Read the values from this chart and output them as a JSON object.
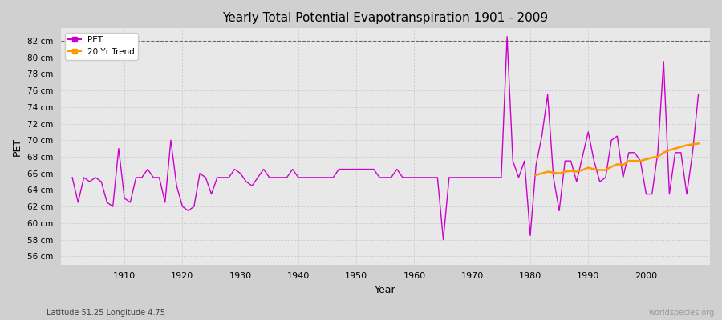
{
  "title": "Yearly Total Potential Evapotranspiration 1901 - 2009",
  "xlabel": "Year",
  "ylabel": "PET",
  "subtitle": "Latitude 51.25 Longitude 4.75",
  "watermark": "worldspecies.org",
  "pet_color": "#cc00cc",
  "trend_color": "#ff9900",
  "fig_bg": "#d0d0d0",
  "ax_bg": "#e8e8e8",
  "years": [
    1901,
    1902,
    1903,
    1904,
    1905,
    1906,
    1907,
    1908,
    1909,
    1910,
    1911,
    1912,
    1913,
    1914,
    1915,
    1916,
    1917,
    1918,
    1919,
    1920,
    1921,
    1922,
    1923,
    1924,
    1925,
    1926,
    1927,
    1928,
    1929,
    1930,
    1931,
    1932,
    1933,
    1934,
    1935,
    1936,
    1937,
    1938,
    1939,
    1940,
    1941,
    1942,
    1943,
    1944,
    1945,
    1946,
    1947,
    1948,
    1949,
    1950,
    1951,
    1952,
    1953,
    1954,
    1955,
    1956,
    1957,
    1958,
    1959,
    1960,
    1961,
    1962,
    1963,
    1964,
    1965,
    1966,
    1967,
    1968,
    1969,
    1970,
    1971,
    1972,
    1973,
    1974,
    1975,
    1976,
    1977,
    1978,
    1979,
    1980,
    1981,
    1982,
    1983,
    1984,
    1985,
    1986,
    1987,
    1988,
    1989,
    1990,
    1991,
    1992,
    1993,
    1994,
    1995,
    1996,
    1997,
    1998,
    1999,
    2000,
    2001,
    2002,
    2003,
    2004,
    2005,
    2006,
    2007,
    2008,
    2009
  ],
  "pet_values": [
    65.5,
    62.5,
    65.5,
    65.0,
    65.5,
    65.0,
    62.5,
    62.0,
    69.0,
    63.0,
    62.5,
    65.5,
    65.5,
    66.5,
    65.5,
    65.5,
    62.5,
    70.0,
    64.5,
    62.0,
    61.5,
    62.0,
    66.0,
    65.5,
    63.5,
    65.5,
    65.5,
    65.5,
    66.5,
    66.0,
    65.0,
    64.5,
    65.5,
    66.5,
    65.5,
    65.5,
    65.5,
    65.5,
    66.5,
    65.5,
    65.5,
    65.5,
    65.5,
    65.5,
    65.5,
    65.5,
    66.5,
    66.5,
    66.5,
    66.5,
    66.5,
    66.5,
    66.5,
    65.5,
    65.5,
    65.5,
    66.5,
    65.5,
    65.5,
    65.5,
    65.5,
    65.5,
    65.5,
    65.5,
    58.0,
    65.5,
    65.5,
    65.5,
    65.5,
    65.5,
    65.5,
    65.5,
    65.5,
    65.5,
    65.5,
    82.5,
    67.5,
    65.5,
    67.5,
    58.5,
    67.0,
    70.5,
    75.5,
    65.5,
    61.5,
    67.5,
    67.5,
    65.0,
    68.0,
    71.0,
    67.5,
    65.0,
    65.5,
    70.0,
    70.5,
    65.5,
    68.5,
    68.5,
    67.5,
    63.5,
    63.5,
    68.5,
    79.5,
    63.5,
    68.5,
    68.5,
    63.5,
    68.5,
    75.5
  ],
  "trend_years": [
    1981,
    1982,
    1983,
    1984,
    1985,
    1986,
    1987,
    1988,
    1989,
    1990,
    1991,
    1992,
    1993,
    1994,
    1995,
    1996,
    1997,
    1998,
    1999,
    2000,
    2001,
    2002,
    2003,
    2004,
    2005,
    2006,
    2007,
    2008,
    2009
  ],
  "trend_values": [
    65.8,
    66.0,
    66.2,
    66.1,
    66.0,
    66.2,
    66.3,
    66.2,
    66.4,
    66.7,
    66.5,
    66.4,
    66.4,
    66.8,
    67.1,
    67.0,
    67.5,
    67.5,
    67.5,
    67.7,
    67.9,
    68.0,
    68.5,
    68.8,
    69.0,
    69.2,
    69.4,
    69.5,
    69.6
  ],
  "xlim": [
    1899,
    2011
  ],
  "ylim": [
    55,
    83.5
  ],
  "yticks": [
    56,
    58,
    60,
    62,
    64,
    66,
    68,
    70,
    72,
    74,
    76,
    78,
    80,
    82
  ],
  "xticks": [
    1910,
    1920,
    1930,
    1940,
    1950,
    1960,
    1970,
    1980,
    1990,
    2000
  ]
}
